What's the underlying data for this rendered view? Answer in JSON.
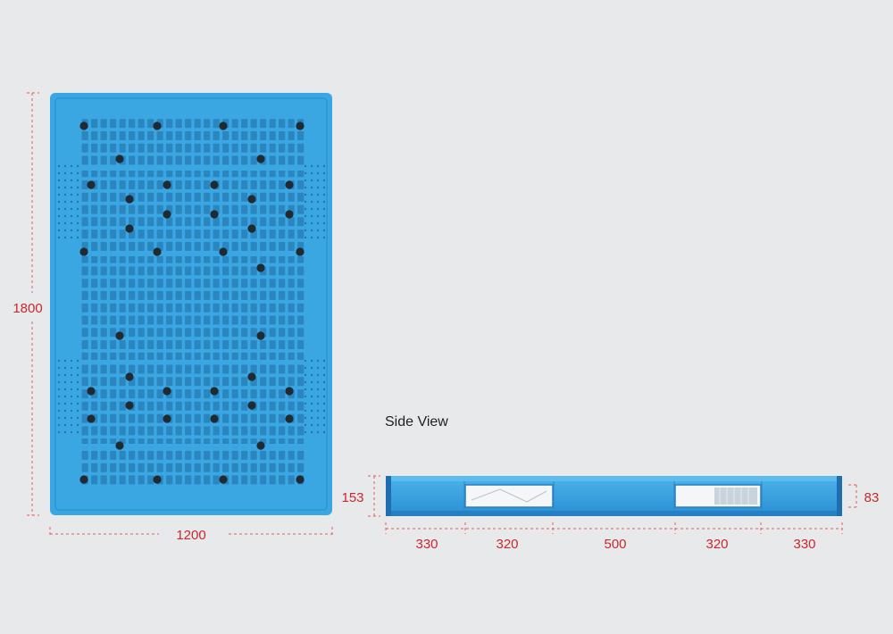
{
  "top_view": {
    "width_label": "1200",
    "length_label": "1800",
    "colors": {
      "pallet": "#3aa6e2",
      "pallet_dark": "#2386c7",
      "hole": "#1f6aa3",
      "foot": "#202a33"
    }
  },
  "side_view": {
    "caption": "Side View",
    "height_label": "153",
    "inner_height_label": "83",
    "segments": [
      "330",
      "320",
      "500",
      "320",
      "330"
    ]
  },
  "colors": {
    "dimension": "#c8282e",
    "background": "#e8e9ea"
  }
}
